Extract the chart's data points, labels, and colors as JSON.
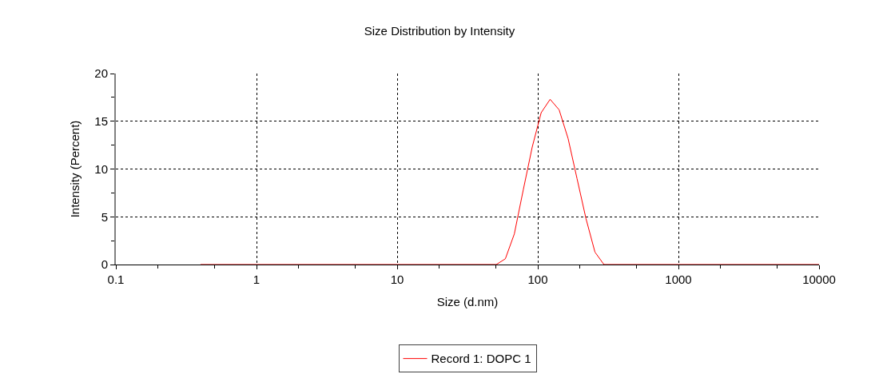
{
  "chart_data": {
    "type": "line",
    "title": "Size Distribution by Intensity",
    "xlabel": "Size (d.nm)",
    "ylabel": "Intensity (Percent)",
    "log": "x",
    "xlim": [
      0.1,
      10000
    ],
    "xticks": [
      0.1,
      1,
      10,
      100,
      1000,
      10000
    ],
    "ylim": [
      0,
      20
    ],
    "yticks": [
      0,
      5,
      10,
      15,
      20
    ],
    "grid": true,
    "legend": "bottom",
    "marker": "none",
    "line_style": "solid",
    "x": [
      0.4,
      50.7,
      58.8,
      68.1,
      78.8,
      91.3,
      105.7,
      122.4,
      141.8,
      164.2,
      190.1,
      220.2,
      255,
      295.3,
      10000
    ],
    "series": [
      {
        "name": "Record 1: DOPC 1",
        "color": "#ff0000",
        "values": [
          0,
          0,
          0.6,
          3.2,
          7.8,
          12.3,
          15.9,
          17.3,
          16.2,
          13.2,
          9.0,
          4.8,
          1.3,
          0,
          0
        ]
      }
    ]
  }
}
